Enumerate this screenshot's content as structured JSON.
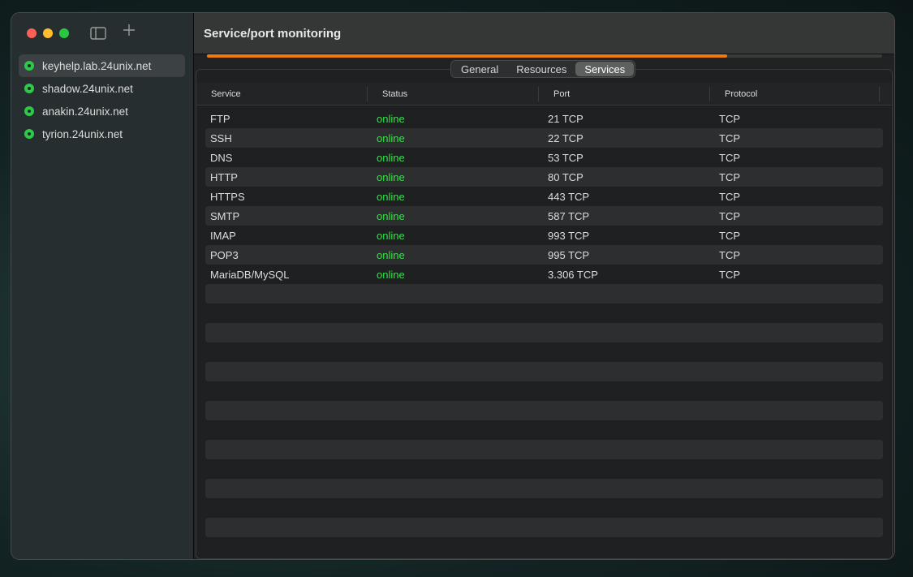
{
  "window": {
    "title": "Service/port monitoring",
    "progress_percent": 77,
    "accent": "#ee7a10"
  },
  "sidebar": {
    "hosts": [
      {
        "name": "keyhelp.lab.24unix.net",
        "status": "online",
        "selected": true
      },
      {
        "name": "shadow.24unix.net",
        "status": "online"
      },
      {
        "name": "anakin.24unix.net",
        "status": "online"
      },
      {
        "name": "tyrion.24unix.net",
        "status": "online"
      }
    ]
  },
  "tabs": [
    {
      "label": "General"
    },
    {
      "label": "Resources"
    },
    {
      "label": "Services",
      "active": true
    }
  ],
  "table": {
    "headers": [
      "Service",
      "Status",
      "Port",
      "Protocol"
    ],
    "rows": [
      [
        "FTP",
        "online",
        "21 TCP",
        "TCP"
      ],
      [
        "SSH",
        "online",
        "22 TCP",
        "TCP"
      ],
      [
        "DNS",
        "online",
        "53 TCP",
        "TCP"
      ],
      [
        "HTTP",
        "online",
        "80 TCP",
        "TCP"
      ],
      [
        "HTTPS",
        "online",
        "443 TCP",
        "TCP"
      ],
      [
        "SMTP",
        "online",
        "587 TCP",
        "TCP"
      ],
      [
        "IMAP",
        "online",
        "993 TCP",
        "TCP"
      ],
      [
        "POP3",
        "online",
        "995 TCP",
        "TCP"
      ],
      [
        "MariaDB/MySQL",
        "online",
        "3.306 TCP",
        "TCP"
      ]
    ]
  }
}
